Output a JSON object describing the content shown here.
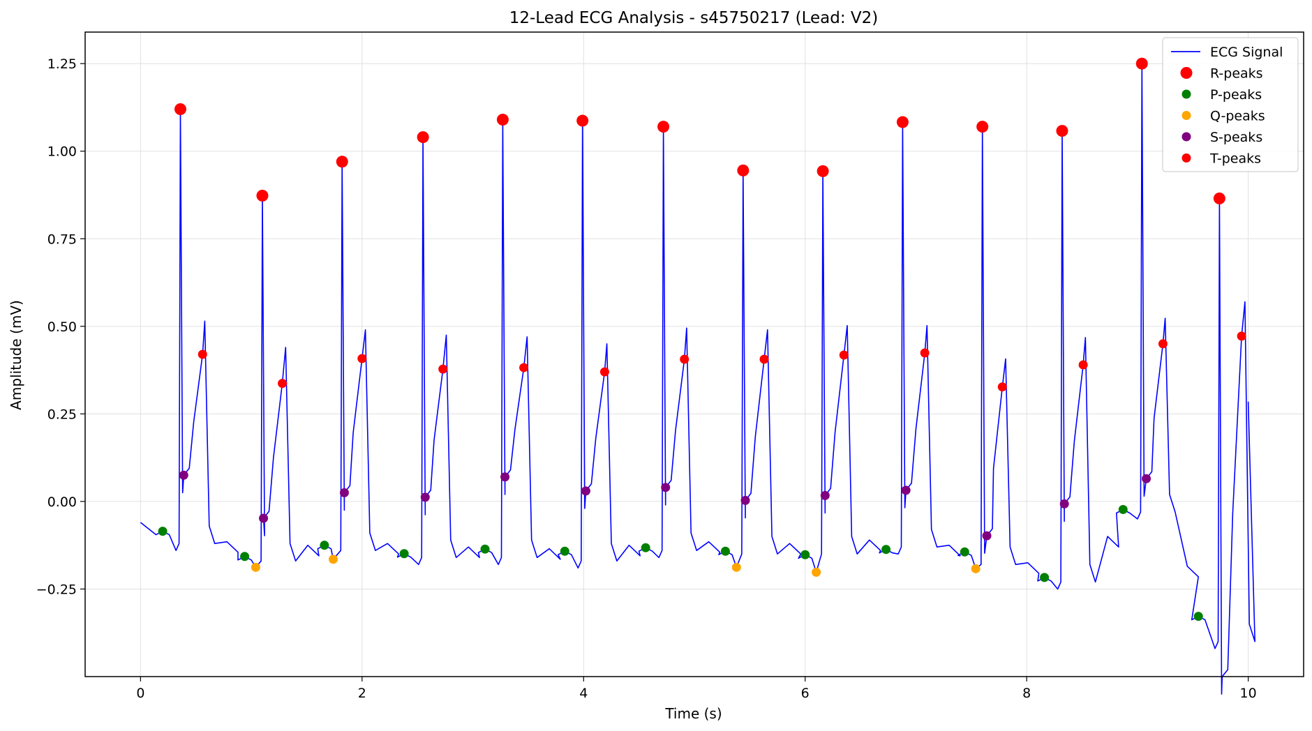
{
  "chart_data": {
    "type": "line",
    "title": "12-Lead ECG Analysis - s45750217 (Lead: V2)",
    "xlabel": "Time (s)",
    "ylabel": "Amplitude (mV)",
    "xlim": [
      -0.5,
      10.5
    ],
    "ylim": [
      -0.5,
      1.34
    ],
    "xticks": [
      0,
      2,
      4,
      6,
      8,
      10
    ],
    "yticks": [
      -0.25,
      0.0,
      0.25,
      0.5,
      0.75,
      1.0,
      1.25
    ],
    "ytick_labels": [
      "−0.25",
      "0.00",
      "0.25",
      "0.50",
      "0.75",
      "1.00",
      "1.25"
    ],
    "grid": true,
    "legend_position": "top-right",
    "colors": {
      "signal": "#0000ff",
      "r_peaks": "#ff0000",
      "p_peaks": "#008000",
      "q_peaks": "#ffa500",
      "s_peaks": "#800080",
      "t_peaks": "#ff0000"
    },
    "legend": [
      "ECG Signal",
      "R-peaks",
      "P-peaks",
      "Q-peaks",
      "S-peaks",
      "T-peaks"
    ],
    "beats": [
      {
        "r": [
          0.36,
          1.12
        ],
        "t": [
          0.56,
          0.42
        ],
        "s": [
          0.39,
          0.075
        ],
        "q": null,
        "p": [
          0.2,
          -0.085
        ],
        "tpeak": [
          0.58,
          0.515
        ],
        "base": -0.12
      },
      {
        "r": [
          1.1,
          0.873
        ],
        "t": [
          1.28,
          0.337
        ],
        "s": [
          1.11,
          -0.048
        ],
        "q": [
          1.04,
          -0.188
        ],
        "p": [
          0.94,
          -0.157
        ],
        "tpeak": [
          1.31,
          0.44
        ],
        "base": -0.17
      },
      {
        "r": [
          1.82,
          0.97
        ],
        "t": [
          2.0,
          0.408
        ],
        "s": [
          1.84,
          0.025
        ],
        "q": [
          1.74,
          -0.165
        ],
        "p": [
          1.66,
          -0.125
        ],
        "tpeak": [
          2.03,
          0.49
        ],
        "base": -0.14
      },
      {
        "r": [
          2.55,
          1.04
        ],
        "t": [
          2.73,
          0.378
        ],
        "s": [
          2.57,
          0.012
        ],
        "q": null,
        "p": [
          2.38,
          -0.149
        ],
        "tpeak": [
          2.76,
          0.475
        ],
        "base": -0.16
      },
      {
        "r": [
          3.27,
          1.09
        ],
        "t": [
          3.46,
          0.382
        ],
        "s": [
          3.29,
          0.07
        ],
        "q": null,
        "p": [
          3.11,
          -0.136
        ],
        "tpeak": [
          3.49,
          0.47
        ],
        "base": -0.16
      },
      {
        "r": [
          3.99,
          1.087
        ],
        "t": [
          4.19,
          0.37
        ],
        "s": [
          4.02,
          0.03
        ],
        "q": null,
        "p": [
          3.83,
          -0.142
        ],
        "tpeak": [
          4.21,
          0.45
        ],
        "base": -0.17
      },
      {
        "r": [
          4.72,
          1.07
        ],
        "t": [
          4.91,
          0.406
        ],
        "s": [
          4.74,
          0.04
        ],
        "q": null,
        "p": [
          4.56,
          -0.132
        ],
        "tpeak": [
          4.93,
          0.495
        ],
        "base": -0.14
      },
      {
        "r": [
          5.44,
          0.945
        ],
        "t": [
          5.63,
          0.406
        ],
        "s": [
          5.46,
          0.003
        ],
        "q": [
          5.38,
          -0.188
        ],
        "p": [
          5.28,
          -0.142
        ],
        "tpeak": [
          5.66,
          0.49
        ],
        "base": -0.15
      },
      {
        "r": [
          6.16,
          0.943
        ],
        "t": [
          6.35,
          0.418
        ],
        "s": [
          6.18,
          0.017
        ],
        "q": [
          6.1,
          -0.202
        ],
        "p": [
          6.0,
          -0.152
        ],
        "tpeak": [
          6.38,
          0.502
        ],
        "base": -0.15
      },
      {
        "r": [
          6.88,
          1.083
        ],
        "t": [
          7.08,
          0.424
        ],
        "s": [
          6.91,
          0.032
        ],
        "q": null,
        "p": [
          6.73,
          -0.137
        ],
        "tpeak": [
          7.1,
          0.502
        ],
        "base": -0.13
      },
      {
        "r": [
          7.6,
          1.07
        ],
        "t": [
          7.78,
          0.327
        ],
        "s": [
          7.64,
          -0.098
        ],
        "q": [
          7.54,
          -0.192
        ],
        "p": [
          7.44,
          -0.144
        ],
        "tpeak": [
          7.81,
          0.407
        ],
        "base": -0.18
      },
      {
        "r": [
          8.32,
          1.058
        ],
        "t": [
          8.51,
          0.39
        ],
        "s": [
          8.34,
          -0.007
        ],
        "q": null,
        "p": [
          8.16,
          -0.217
        ],
        "tpeak": [
          8.53,
          0.468
        ],
        "base": -0.23
      },
      {
        "r": [
          9.04,
          1.25
        ],
        "t": [
          9.23,
          0.45
        ],
        "s": [
          9.08,
          0.065
        ],
        "q": null,
        "p": [
          8.87,
          -0.023
        ],
        "tpeak": [
          9.25,
          0.523
        ],
        "base": -0.03
      },
      {
        "r": [
          9.74,
          0.865
        ],
        "t": [
          9.94,
          0.472
        ],
        "s": null,
        "q": null,
        "p": [
          9.55,
          -0.328
        ],
        "tpeak": [
          9.97,
          0.57
        ],
        "base": -0.4
      }
    ],
    "signal_end": [
      10.0,
      0.285
    ],
    "signal_start": [
      0.0,
      -0.06
    ]
  }
}
